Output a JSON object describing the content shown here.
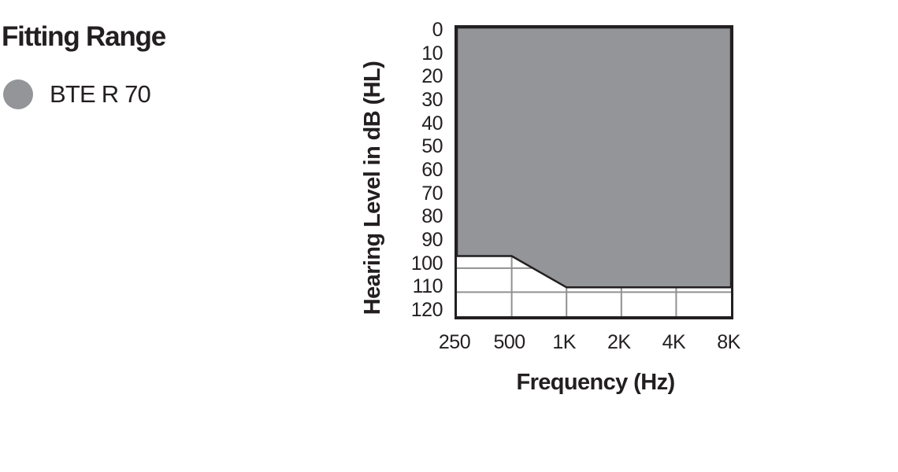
{
  "title": "Fitting Range",
  "legend": {
    "items": [
      {
        "label": "BTE R 70",
        "color": "#939598",
        "shape": "circle"
      }
    ]
  },
  "colors": {
    "range_fill": "#939598",
    "gridline": "#919191",
    "ink": "#231f20",
    "background": "#ffffff"
  },
  "chart_data": {
    "type": "area",
    "title": "Fitting Range",
    "series_name": "BTE R 70",
    "xlabel": "Frequency (Hz)",
    "ylabel": "Hearing Level in dB (HL)",
    "x_scale": "log2",
    "x_ticks": [
      {
        "label": "250",
        "hz": 250
      },
      {
        "label": "500",
        "hz": 500
      },
      {
        "label": "1K",
        "hz": 1000
      },
      {
        "label": "2K",
        "hz": 2000
      },
      {
        "label": "4K",
        "hz": 4000
      },
      {
        "label": "8K",
        "hz": 8000
      }
    ],
    "y_ticks": [
      0,
      10,
      20,
      30,
      40,
      50,
      60,
      70,
      80,
      90,
      100,
      110,
      120
    ],
    "ylim": [
      0,
      120
    ],
    "y_axis_note": "0 dB HL at top, 120 dB HL at bottom (inverted audiogram axis)",
    "shaded_region": {
      "description": "gray fitting range extends from 0 dB HL down to the lower boundary",
      "upper_db": 0,
      "lower_boundary": [
        {
          "hz": 250,
          "db": 95
        },
        {
          "hz": 500,
          "db": 95
        },
        {
          "hz": 1000,
          "db": 108
        },
        {
          "hz": 8000,
          "db": 108
        }
      ]
    },
    "gridlines": {
      "horizontal_db": [
        100,
        110
      ],
      "vertical_hz": [
        500,
        1000,
        2000,
        4000
      ]
    },
    "legend_position": "top-left, outside plot",
    "grid": "partial (visible only below shaded region)"
  }
}
